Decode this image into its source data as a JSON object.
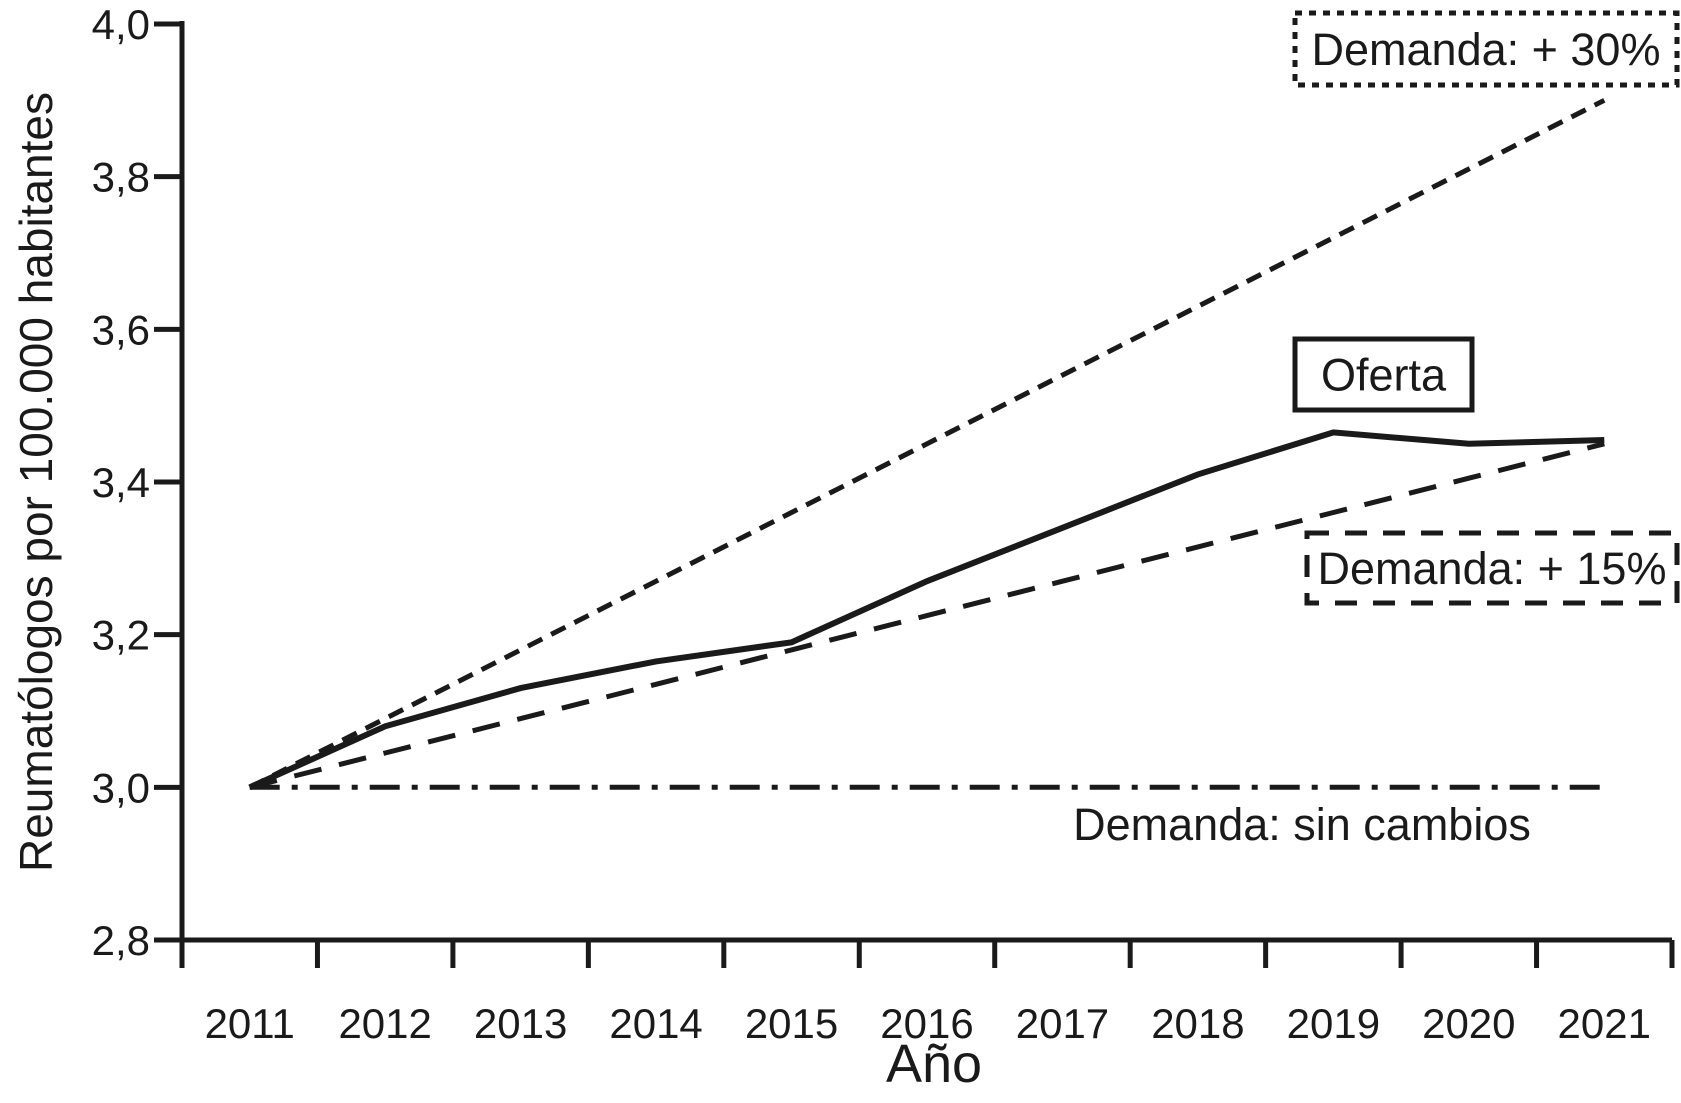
{
  "chart_data": {
    "type": "line",
    "title": "",
    "xlabel": "Año",
    "ylabel": "Reumatólogos por 100.000 habitantes",
    "x_categories": [
      "2011",
      "2012",
      "2013",
      "2014",
      "2015",
      "2016",
      "2017",
      "2018",
      "2019",
      "2020",
      "2021"
    ],
    "ylim": [
      2.8,
      4.0
    ],
    "ytick_values": [
      4.0,
      3.8,
      3.6,
      3.4,
      3.2,
      3.0,
      2.8
    ],
    "ytick_labels": [
      "4,0",
      "3,8",
      "3,6",
      "3,4",
      "3,2",
      "3,0",
      "2,8"
    ],
    "grid": false,
    "legend_position": "inline-annotation-boxes",
    "series": [
      {
        "name": "Oferta",
        "line_style": "solid",
        "values": [
          3.0,
          3.08,
          3.13,
          3.165,
          3.19,
          3.27,
          3.34,
          3.41,
          3.465,
          3.45,
          3.455
        ]
      },
      {
        "name": "Demanda: + 30%",
        "line_style": "dotted",
        "values": [
          3.0,
          3.09,
          3.18,
          3.27,
          3.36,
          3.45,
          3.54,
          3.63,
          3.72,
          3.81,
          3.9
        ]
      },
      {
        "name": "Demanda: + 15%",
        "line_style": "dashed",
        "values": [
          3.0,
          3.045,
          3.09,
          3.135,
          3.18,
          3.225,
          3.27,
          3.315,
          3.36,
          3.405,
          3.45
        ]
      },
      {
        "name": "Demanda: sin cambios",
        "line_style": "dashdot",
        "values": [
          3.0,
          3.0,
          3.0,
          3.0,
          3.0,
          3.0,
          3.0,
          3.0,
          3.0,
          3.0,
          3.0
        ]
      }
    ],
    "annotations": [
      {
        "text": "Demanda: + 30%",
        "border": "dotted"
      },
      {
        "text": "Oferta",
        "border": "solid"
      },
      {
        "text": "Demanda: + 15%",
        "border": "dashed"
      },
      {
        "text": "Demanda: sin cambios",
        "border": "none"
      }
    ]
  },
  "colors": {
    "line": "#1a1a1a",
    "text": "#1a1a1a",
    "background": "#ffffff"
  }
}
